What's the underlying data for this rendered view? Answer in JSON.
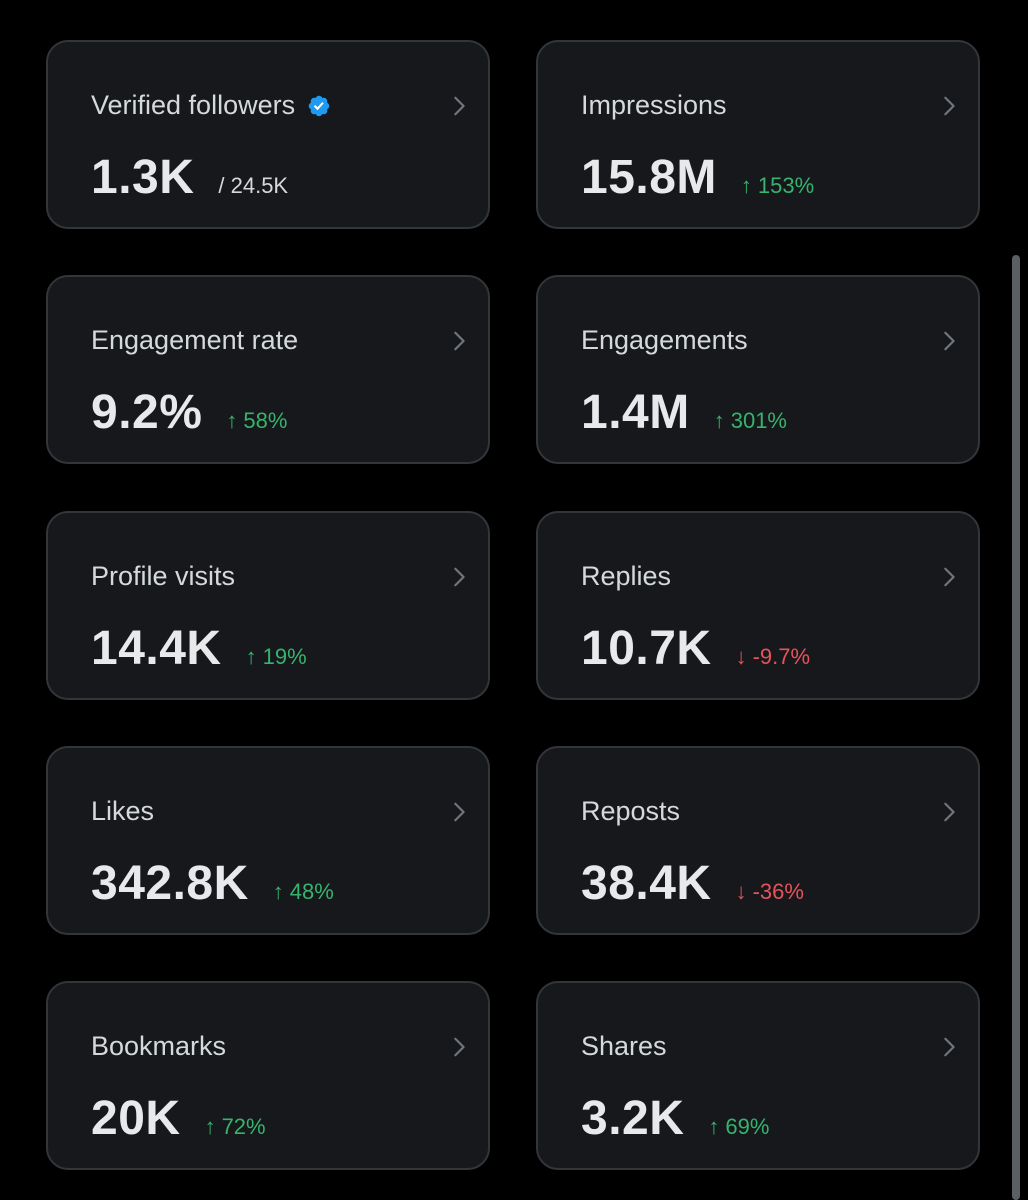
{
  "colors": {
    "background": "#000000",
    "card": "#16181c",
    "card_border": "#333639",
    "up": "#36b36c",
    "down": "#e5535b",
    "verified": "#1d9bf0"
  },
  "cards": [
    {
      "label": "Verified followers",
      "value": "1.3K",
      "sub": "/ 24.5K",
      "verified": true
    },
    {
      "label": "Impressions",
      "value": "15.8M",
      "arrow": "↑",
      "delta": "153%",
      "direction": "up"
    },
    {
      "label": "Engagement rate",
      "value": "9.2%",
      "arrow": "↑",
      "delta": "58%",
      "direction": "up"
    },
    {
      "label": "Engagements",
      "value": "1.4M",
      "arrow": "↑",
      "delta": "301%",
      "direction": "up"
    },
    {
      "label": "Profile visits",
      "value": "14.4K",
      "arrow": "↑",
      "delta": "19%",
      "direction": "up"
    },
    {
      "label": "Replies",
      "value": "10.7K",
      "arrow": "↓",
      "delta": "-9.7%",
      "direction": "down"
    },
    {
      "label": "Likes",
      "value": "342.8K",
      "arrow": "↑",
      "delta": "48%",
      "direction": "up"
    },
    {
      "label": "Reposts",
      "value": "38.4K",
      "arrow": "↓",
      "delta": "-36%",
      "direction": "down"
    },
    {
      "label": "Bookmarks",
      "value": "20K",
      "arrow": "↑",
      "delta": "72%",
      "direction": "up"
    },
    {
      "label": "Shares",
      "value": "3.2K",
      "arrow": "↑",
      "delta": "69%",
      "direction": "up"
    }
  ]
}
